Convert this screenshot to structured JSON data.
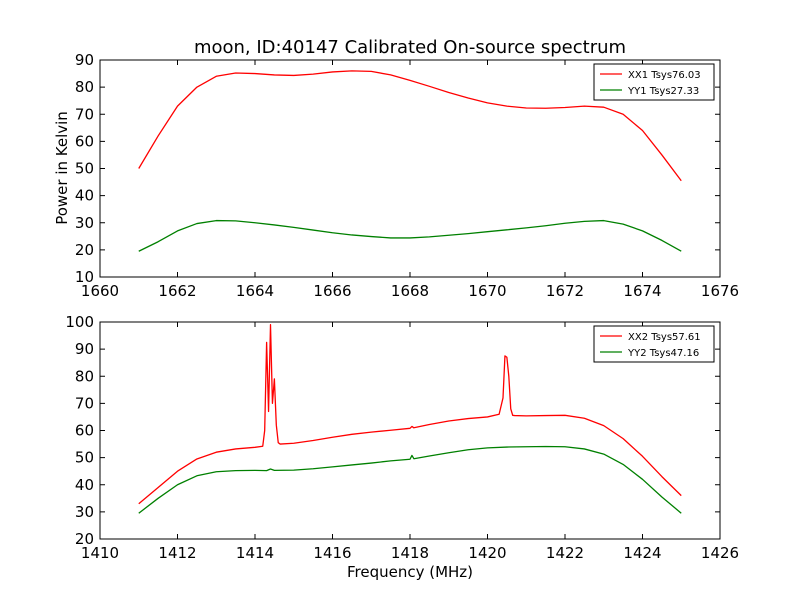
{
  "title": "moon, ID:40147 Calibrated On-source spectrum",
  "chart_data": [
    {
      "type": "line",
      "title": "moon, ID:40147 Calibrated On-source spectrum",
      "xlabel": "",
      "ylabel": "Power in Kelvin",
      "xlim": [
        1660,
        1676
      ],
      "ylim": [
        10,
        90
      ],
      "xticks": [
        "1660",
        "1662",
        "1664",
        "1666",
        "1668",
        "1670",
        "1672",
        "1674",
        "1676"
      ],
      "yticks": [
        "10",
        "20",
        "30",
        "40",
        "50",
        "60",
        "70",
        "80",
        "90"
      ],
      "legend_position": "top-right",
      "series": [
        {
          "name": "XX1 Tsys76.03",
          "color": "#ff0000",
          "x": [
            1661.0,
            1661.5,
            1662.0,
            1662.5,
            1663.0,
            1663.5,
            1664.0,
            1664.5,
            1665.0,
            1665.5,
            1666.0,
            1666.5,
            1667.0,
            1667.5,
            1668.0,
            1668.5,
            1669.0,
            1669.5,
            1670.0,
            1670.5,
            1671.0,
            1671.5,
            1672.0,
            1672.5,
            1673.0,
            1673.5,
            1674.0,
            1674.5,
            1675.0
          ],
          "y": [
            50,
            62,
            73,
            80,
            84,
            85.2,
            85,
            84.5,
            84.3,
            84.8,
            85.6,
            86.0,
            85.8,
            84.5,
            82.5,
            80.3,
            78,
            76,
            74.2,
            73,
            72.3,
            72.2,
            72.5,
            73,
            72.6,
            70,
            64,
            55,
            45.5
          ]
        },
        {
          "name": "YY1 Tsys27.33",
          "color": "#008000",
          "x": [
            1661.0,
            1661.5,
            1662.0,
            1662.5,
            1663.0,
            1663.5,
            1664.0,
            1664.5,
            1665.0,
            1665.5,
            1666.0,
            1666.5,
            1667.0,
            1667.5,
            1668.0,
            1668.5,
            1669.0,
            1669.5,
            1670.0,
            1670.5,
            1671.0,
            1671.5,
            1672.0,
            1672.5,
            1673.0,
            1673.5,
            1674.0,
            1674.5,
            1675.0
          ],
          "y": [
            19.5,
            23,
            27,
            29.7,
            30.8,
            30.7,
            30,
            29.2,
            28.3,
            27.3,
            26.3,
            25.5,
            24.9,
            24.4,
            24.4,
            24.8,
            25.4,
            26,
            26.7,
            27.4,
            28.1,
            28.9,
            29.8,
            30.5,
            30.8,
            29.5,
            27,
            23.5,
            19.5
          ]
        }
      ]
    },
    {
      "type": "line",
      "title": "",
      "xlabel": "Frequency (MHz)",
      "ylabel": "",
      "xlim": [
        1410,
        1426
      ],
      "ylim": [
        20,
        100
      ],
      "xticks": [
        "1410",
        "1412",
        "1414",
        "1416",
        "1418",
        "1420",
        "1422",
        "1424",
        "1426"
      ],
      "yticks": [
        "20",
        "30",
        "40",
        "50",
        "60",
        "70",
        "80",
        "90",
        "100"
      ],
      "legend_position": "top-right",
      "series": [
        {
          "name": "XX2 Tsys57.61",
          "color": "#ff0000",
          "x": [
            1411.0,
            1411.5,
            1412.0,
            1412.5,
            1413.0,
            1413.5,
            1414.0,
            1414.2,
            1414.25,
            1414.3,
            1414.35,
            1414.4,
            1414.45,
            1414.5,
            1414.55,
            1414.6,
            1414.65,
            1415.0,
            1415.5,
            1416.0,
            1416.5,
            1417.0,
            1417.5,
            1418.0,
            1418.05,
            1418.1,
            1418.5,
            1419.0,
            1419.5,
            1420.0,
            1420.3,
            1420.4,
            1420.45,
            1420.5,
            1420.55,
            1420.6,
            1420.65,
            1420.7,
            1421.0,
            1421.5,
            1422.0,
            1422.5,
            1423.0,
            1423.5,
            1424.0,
            1424.5,
            1425.0
          ],
          "y": [
            33,
            39,
            45,
            49.5,
            52,
            53.2,
            53.8,
            54.2,
            60,
            92.5,
            67,
            99,
            70,
            79,
            62,
            55.5,
            55,
            55.3,
            56.3,
            57.5,
            58.6,
            59.4,
            60.1,
            60.8,
            61.5,
            61,
            62.2,
            63.5,
            64.4,
            65,
            66,
            72,
            87.5,
            87,
            80,
            68,
            65.6,
            65.5,
            65.4,
            65.5,
            65.6,
            64.5,
            61.8,
            57,
            50.5,
            43,
            36
          ]
        },
        {
          "name": "YY2 Tsys47.16",
          "color": "#008000",
          "x": [
            1411.0,
            1411.5,
            1412.0,
            1412.5,
            1413.0,
            1413.5,
            1414.0,
            1414.3,
            1414.4,
            1414.5,
            1415.0,
            1415.5,
            1416.0,
            1416.5,
            1417.0,
            1417.5,
            1418.0,
            1418.05,
            1418.1,
            1418.5,
            1419.0,
            1419.5,
            1420.0,
            1420.5,
            1421.0,
            1421.5,
            1422.0,
            1422.5,
            1423.0,
            1423.5,
            1424.0,
            1424.5,
            1425.0
          ],
          "y": [
            29.5,
            35,
            40,
            43.3,
            44.8,
            45.2,
            45.3,
            45.2,
            45.8,
            45.3,
            45.4,
            45.9,
            46.6,
            47.3,
            48,
            48.8,
            49.4,
            50.8,
            49.6,
            50.6,
            51.8,
            52.9,
            53.6,
            53.9,
            54,
            54.1,
            54,
            53.2,
            51.3,
            47.5,
            42,
            35.5,
            29.5
          ]
        }
      ]
    }
  ]
}
